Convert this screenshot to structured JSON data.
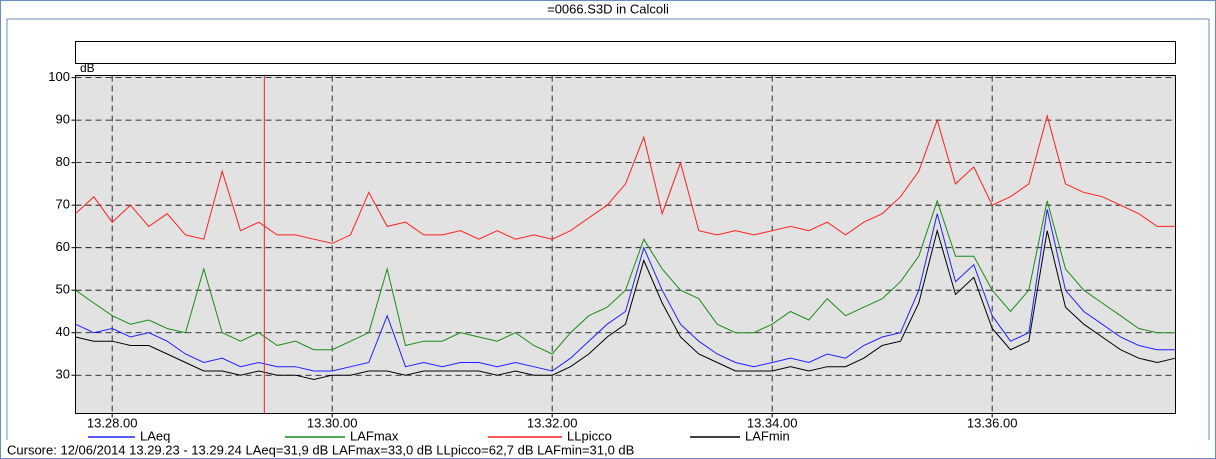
{
  "chart_data": {
    "type": "line",
    "window_title": "=0066.S3D in Calcoli",
    "y_label": "dB",
    "xlim": [
      "13.27.40",
      "13.37.40"
    ],
    "xticks": [
      "13.28.00",
      "13.30.00",
      "13.32.00",
      "13.34.00",
      "13.36.00"
    ],
    "ylim": [
      21,
      100.5
    ],
    "yticks": [
      30,
      40,
      50,
      60,
      70,
      80,
      90,
      100
    ],
    "grid": true,
    "cursor": "13.29.23",
    "status": "Cursore: 12/06/2014 13.29.23 - 13.29.24  LAeq=31,9 dB  LAFmax=33,0 dB  LLpicco=62,7 dB  LAFmin=31,0 dB",
    "x": [
      "13.27.40",
      "13.27.50",
      "13.28.00",
      "13.28.10",
      "13.28.20",
      "13.28.30",
      "13.28.40",
      "13.28.50",
      "13.29.00",
      "13.29.10",
      "13.29.20",
      "13.29.30",
      "13.29.40",
      "13.29.50",
      "13.30.00",
      "13.30.10",
      "13.30.20",
      "13.30.30",
      "13.30.40",
      "13.30.50",
      "13.31.00",
      "13.31.10",
      "13.31.20",
      "13.31.30",
      "13.31.40",
      "13.31.50",
      "13.32.00",
      "13.32.10",
      "13.32.20",
      "13.32.30",
      "13.32.40",
      "13.32.50",
      "13.33.00",
      "13.33.10",
      "13.33.20",
      "13.33.30",
      "13.33.40",
      "13.33.50",
      "13.34.00",
      "13.34.10",
      "13.34.20",
      "13.34.30",
      "13.34.40",
      "13.34.50",
      "13.35.00",
      "13.35.10",
      "13.35.20",
      "13.35.30",
      "13.35.40",
      "13.35.50",
      "13.36.00",
      "13.36.10",
      "13.36.20",
      "13.36.30",
      "13.36.40",
      "13.36.50",
      "13.37.00",
      "13.37.10",
      "13.37.20",
      "13.37.30",
      "13.37.40"
    ],
    "series": [
      {
        "name": "LLpicco",
        "color": "#ff2020",
        "values": [
          68,
          72,
          66,
          70,
          65,
          68,
          63,
          62,
          78,
          64,
          66,
          63,
          63,
          62,
          61,
          63,
          73,
          65,
          66,
          63,
          63,
          64,
          62,
          64,
          62,
          63,
          62,
          64,
          67,
          70,
          75,
          86,
          68,
          80,
          64,
          63,
          64,
          63,
          64,
          65,
          64,
          66,
          63,
          66,
          68,
          72,
          78,
          90,
          75,
          79,
          70,
          72,
          75,
          91,
          75,
          73,
          72,
          70,
          68,
          65,
          65
        ]
      },
      {
        "name": "LAFmax",
        "color": "#1a8c1a",
        "values": [
          50,
          47,
          44,
          42,
          43,
          41,
          40,
          55,
          40,
          38,
          40,
          37,
          38,
          36,
          36,
          38,
          40,
          55,
          37,
          38,
          38,
          40,
          39,
          38,
          40,
          37,
          35,
          40,
          44,
          46,
          50,
          62,
          55,
          50,
          48,
          42,
          40,
          40,
          42,
          45,
          43,
          48,
          44,
          46,
          48,
          52,
          58,
          71,
          58,
          58,
          50,
          45,
          50,
          71,
          55,
          50,
          47,
          44,
          41,
          40,
          40
        ]
      },
      {
        "name": "LAeq",
        "color": "#2020ff",
        "values": [
          42,
          40,
          41,
          39,
          40,
          38,
          35,
          33,
          34,
          32,
          33,
          32,
          32,
          31,
          31,
          32,
          33,
          44,
          32,
          33,
          32,
          33,
          33,
          32,
          33,
          32,
          31,
          34,
          38,
          42,
          45,
          60,
          50,
          42,
          38,
          35,
          33,
          32,
          33,
          34,
          33,
          35,
          34,
          37,
          39,
          40,
          50,
          68,
          52,
          56,
          44,
          38,
          40,
          69,
          50,
          45,
          42,
          39,
          37,
          36,
          36
        ]
      },
      {
        "name": "LAFmin",
        "color": "#000000",
        "values": [
          39,
          38,
          38,
          37,
          37,
          35,
          33,
          31,
          31,
          30,
          31,
          30,
          30,
          29,
          30,
          30,
          31,
          31,
          30,
          31,
          31,
          31,
          31,
          30,
          31,
          30,
          30,
          32,
          35,
          39,
          42,
          57,
          47,
          39,
          35,
          33,
          31,
          31,
          31,
          32,
          31,
          32,
          32,
          34,
          37,
          38,
          47,
          64,
          49,
          53,
          41,
          36,
          38,
          64,
          46,
          42,
          39,
          36,
          34,
          33,
          34
        ]
      }
    ],
    "legend_order": [
      "LAeq",
      "LAFmax",
      "LLpicco",
      "LAFmin"
    ]
  }
}
